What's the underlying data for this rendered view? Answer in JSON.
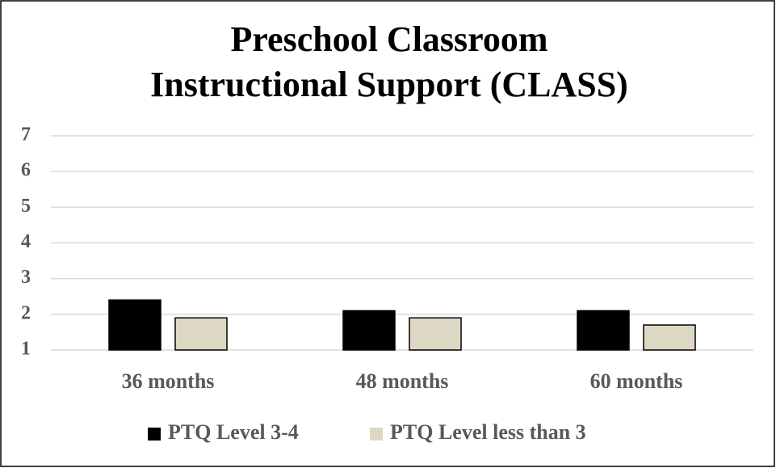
{
  "chart_data": {
    "type": "bar",
    "title": [
      "Preschool Classroom",
      "Instructional Support (CLASS)"
    ],
    "categories": [
      "36 months",
      "48 months",
      "60 months"
    ],
    "series": [
      {
        "name": "PTQ Level 3-4",
        "color": "#000000",
        "values": [
          2.4,
          2.1,
          2.1
        ]
      },
      {
        "name": "PTQ Level less than 3",
        "color": "#ddd8c4",
        "values": [
          1.9,
          1.9,
          1.7
        ]
      }
    ],
    "ylim": [
      1,
      7
    ],
    "yticks": [
      1,
      2,
      3,
      4,
      5,
      6,
      7
    ],
    "grid": true,
    "legend": "bottom"
  }
}
